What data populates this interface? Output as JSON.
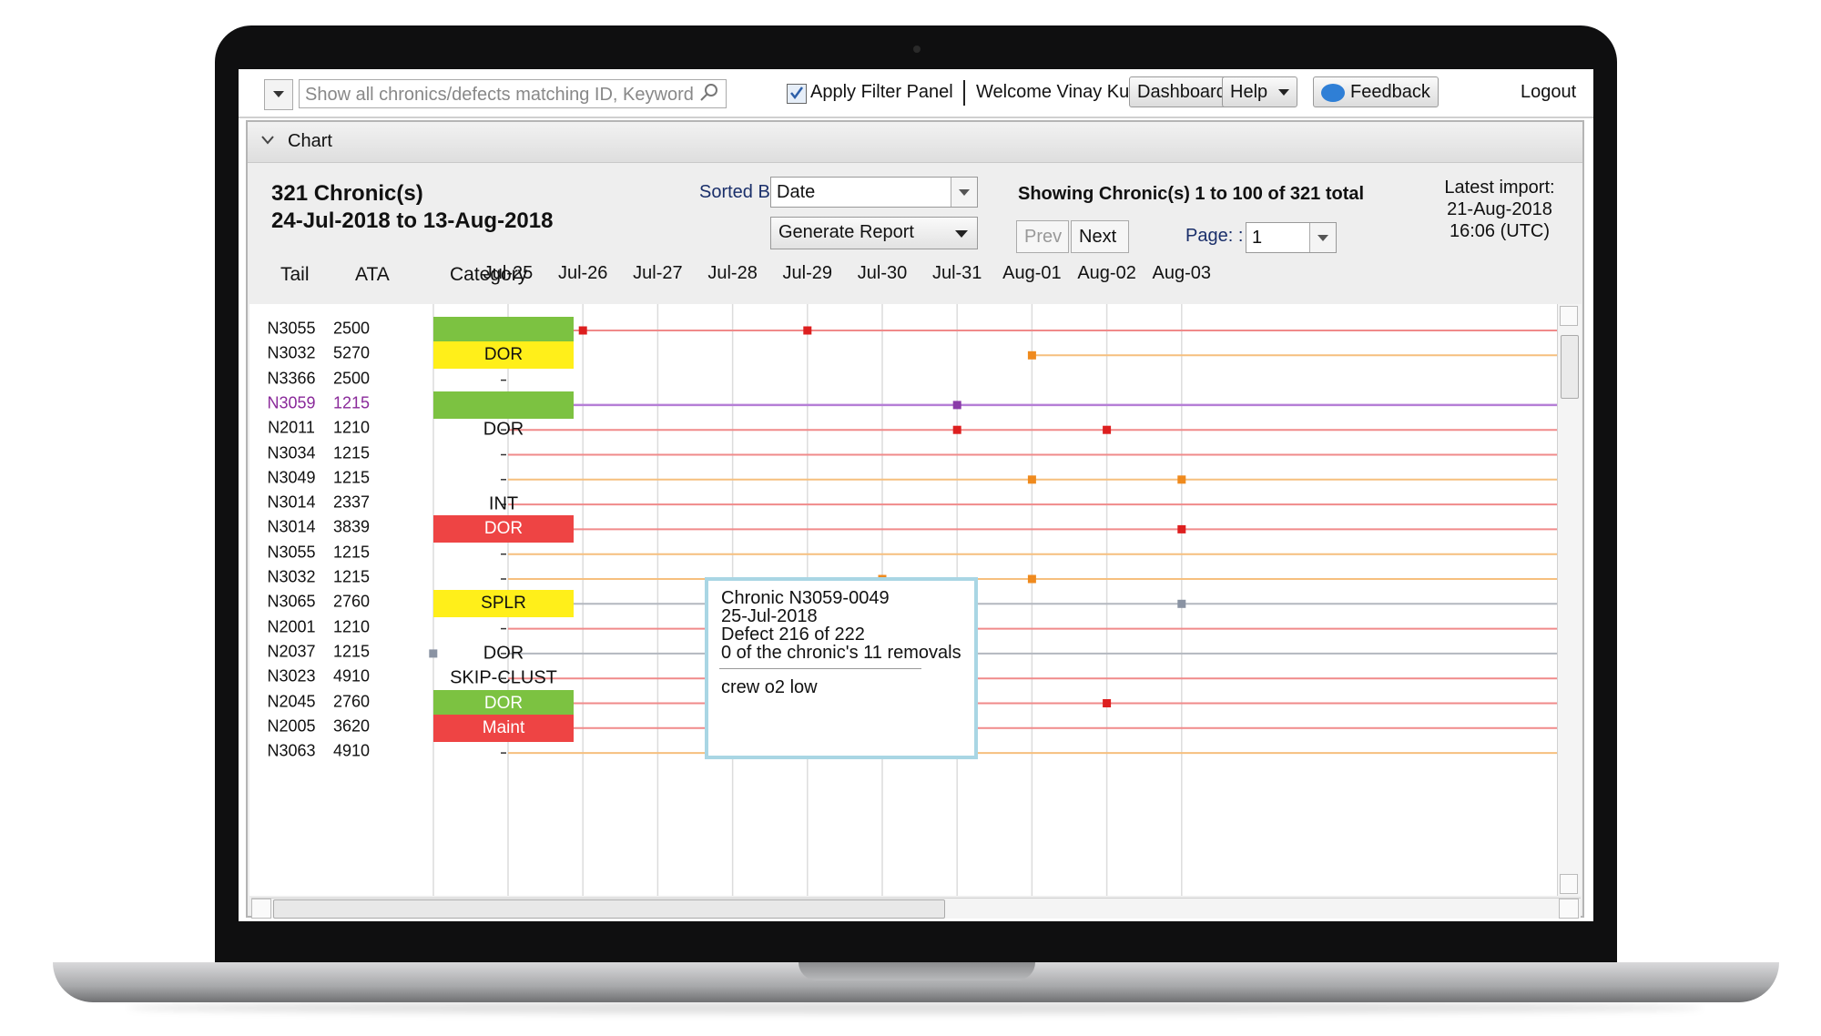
{
  "topbar": {
    "search_placeholder": "Show all chronics/defects matching ID, Keyword",
    "apply_filter_label": "Apply Filter Panel",
    "welcome_text": "Welcome Vinay Kumar",
    "dashboard_label": "Dashboard",
    "help_label": "Help",
    "feedback_label": "Feedback",
    "logout_label": "Logout"
  },
  "panel": {
    "title": "Chart",
    "count_text": "321 Chronic(s)",
    "range_text": "24-Jul-2018 to 13-Aug-2018",
    "sorted_by_label": "Sorted By :",
    "sorted_by_value": "Date",
    "generate_report_label": "Generate Report",
    "showing_text": "Showing Chronic(s) 1 to 100 of 321 total",
    "prev_label": "Prev",
    "next_label": "Next",
    "page_label": "Page: :",
    "page_value": "1",
    "latest_import_label": "Latest import:",
    "latest_import_date": "21-Aug-2018",
    "latest_import_time": "16:06 (UTC)"
  },
  "columns": {
    "tail": "Tail",
    "ata": "ATA",
    "category": "Category"
  },
  "dates": [
    "Jul-25",
    "Jul-26",
    "Jul-27",
    "Jul-28",
    "Jul-29",
    "Jul-30",
    "Jul-31",
    "Aug-01",
    "Aug-02",
    "Aug-03"
  ],
  "colors": {
    "red": "#f08a8a",
    "orange": "#f6bf7e",
    "purple": "#b57ed6",
    "gray": "#b3b7bf",
    "selected_text": "#8a2a9a",
    "green_cat": "#7cc241",
    "yellow_cat": "#ffef1a",
    "red_cat": "#ee4444"
  },
  "rows": [
    {
      "tail": "N3055",
      "ata": "2500",
      "category": "",
      "cat_style": "green",
      "line": "red",
      "markers": [
        {
          "date": "Jul-26",
          "color": "#dd1f1f"
        },
        {
          "date": "Jul-29",
          "color": "#dd1f1f"
        }
      ]
    },
    {
      "tail": "N3032",
      "ata": "5270",
      "category": "DOR",
      "cat_style": "yellow",
      "line": "orange",
      "line_start": "Aug-01",
      "markers": [
        {
          "date": "Aug-01",
          "color": "#ef8a1e"
        }
      ]
    },
    {
      "tail": "N3366",
      "ata": "2500",
      "category": "",
      "cat_style": "none",
      "line": "none",
      "markers": []
    },
    {
      "tail": "N3059",
      "ata": "1215",
      "category": "",
      "cat_style": "green",
      "line": "purple",
      "selected": true,
      "markers": [
        {
          "date": "Jul-25",
          "color": "#8a3aa8"
        },
        {
          "date": "Jul-31",
          "color": "#8a3aa8"
        }
      ]
    },
    {
      "tail": "N2011",
      "ata": "1210",
      "category": "DOR",
      "cat_style": "text",
      "line": "red",
      "markers": [
        {
          "date": "Jul-31",
          "color": "#dd1f1f"
        },
        {
          "date": "Aug-02",
          "color": "#dd1f1f"
        }
      ]
    },
    {
      "tail": "N3034",
      "ata": "1215",
      "category": "",
      "cat_style": "none",
      "line": "red",
      "markers": []
    },
    {
      "tail": "N3049",
      "ata": "1215",
      "category": "",
      "cat_style": "none",
      "line": "orange",
      "markers": [
        {
          "date": "Aug-01",
          "color": "#ef8a1e"
        },
        {
          "date": "Aug-03",
          "color": "#ef8a1e"
        }
      ]
    },
    {
      "tail": "N3014",
      "ata": "2337",
      "category": "INT",
      "cat_style": "text",
      "line": "red",
      "markers": []
    },
    {
      "tail": "N3014",
      "ata": "3839",
      "category": "DOR",
      "cat_style": "red",
      "line": "red",
      "markers": [
        {
          "date": "Aug-03",
          "color": "#dd1f1f"
        }
      ]
    },
    {
      "tail": "N3055",
      "ata": "1215",
      "category": "",
      "cat_style": "none",
      "line": "orange",
      "markers": []
    },
    {
      "tail": "N3032",
      "ata": "1215",
      "category": "",
      "cat_style": "none",
      "line": "orange",
      "markers": [
        {
          "date": "Jul-30",
          "color": "#ef8a1e"
        },
        {
          "date": "Aug-01",
          "color": "#ef8a1e"
        }
      ]
    },
    {
      "tail": "N3065",
      "ata": "2760",
      "category": "SPLR",
      "cat_style": "yellow",
      "line": "gray",
      "markers": [
        {
          "date": "Aug-03",
          "color": "#8a93a3"
        }
      ]
    },
    {
      "tail": "N2001",
      "ata": "1210",
      "category": "",
      "cat_style": "none",
      "line": "red",
      "markers": []
    },
    {
      "tail": "N2037",
      "ata": "1215",
      "category": "DOR",
      "cat_style": "text",
      "line": "gray",
      "markers": [
        {
          "date": "Jul-24",
          "color": "#8a93a3"
        },
        {
          "date": "Jul-29",
          "color": "#8a93a3"
        }
      ]
    },
    {
      "tail": "N3023",
      "ata": "4910",
      "category": "SKIP-CLUST",
      "cat_style": "text",
      "line": "red",
      "markers": []
    },
    {
      "tail": "N2045",
      "ata": "2760",
      "category": "DOR",
      "cat_style": "green",
      "line": "red",
      "markers": [
        {
          "date": "Aug-02",
          "color": "#dd1f1f"
        }
      ]
    },
    {
      "tail": "N2005",
      "ata": "3620",
      "category": "Maint",
      "cat_style": "red",
      "line": "red",
      "markers": []
    },
    {
      "tail": "N3063",
      "ata": "4910",
      "category": "",
      "cat_style": "none",
      "line": "orange",
      "markers": []
    }
  ],
  "tooltip": {
    "title": "Chronic N3059-0049",
    "date": "25-Jul-2018",
    "defect": "Defect 216 of 222",
    "removals": "0 of the chronic's 11 removals",
    "note": "crew o2 low"
  }
}
